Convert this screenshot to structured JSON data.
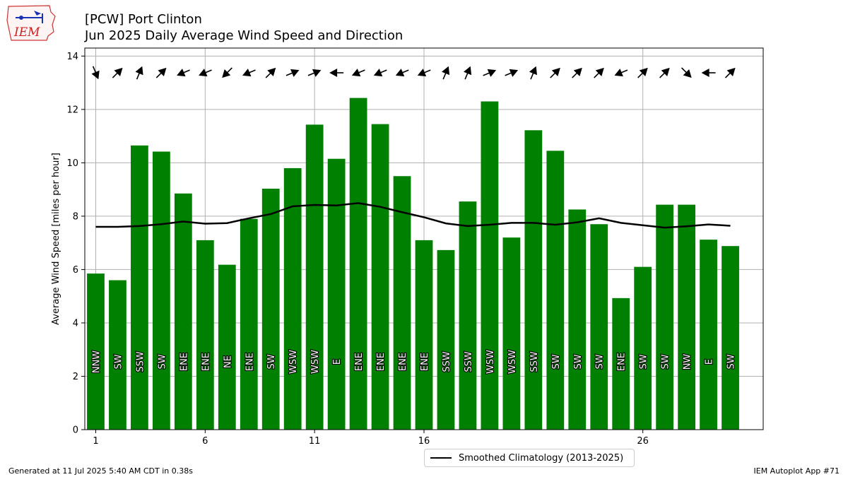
{
  "header": {
    "title_line1": "[PCW] Port Clinton",
    "title_line2": "Jun 2025 Daily Average Wind Speed and Direction"
  },
  "logo": {
    "text": "IEM",
    "icon": "iowa-state-weather-logo"
  },
  "footer": {
    "left": "Generated at 11 Jul 2025 5:40 AM CDT in 0.38s",
    "right": "IEM Autoplot App #71"
  },
  "legend": {
    "label": "Smoothed Climatology (2013-2025)"
  },
  "colors": {
    "bar": "#008000",
    "line": "#000000",
    "grid": "#b0b0b0",
    "arrow": "#000000"
  },
  "chart_data": {
    "type": "bar",
    "ylabel": "Average Wind Speed [miles per hour]",
    "xlabel": "",
    "ylim": [
      0,
      14.3
    ],
    "xlim": [
      0.5,
      31.5
    ],
    "grid": true,
    "legend_position": "bottom-center",
    "x_ticks": [
      1,
      6,
      11,
      16,
      26
    ],
    "y_ticks": [
      0,
      2,
      4,
      6,
      8,
      10,
      12,
      14
    ],
    "days": [
      1,
      2,
      3,
      4,
      5,
      6,
      7,
      8,
      9,
      10,
      11,
      12,
      13,
      14,
      15,
      16,
      17,
      18,
      19,
      20,
      21,
      22,
      23,
      24,
      25,
      26,
      27,
      28,
      29,
      30
    ],
    "series": [
      {
        "name": "Average Wind Speed",
        "values": [
          5.85,
          5.6,
          10.65,
          10.42,
          8.85,
          7.1,
          6.18,
          7.9,
          9.03,
          9.8,
          11.43,
          10.15,
          12.43,
          11.45,
          9.5,
          7.1,
          6.73,
          8.55,
          12.3,
          7.2,
          11.22,
          10.45,
          8.25,
          7.7,
          4.93,
          6.1,
          8.43,
          8.43,
          7.12,
          6.88
        ]
      },
      {
        "name": "Smoothed Climatology (2013-2025)",
        "values": [
          7.6,
          7.6,
          7.63,
          7.7,
          7.8,
          7.72,
          7.74,
          7.92,
          8.08,
          8.37,
          8.42,
          8.4,
          8.49,
          8.35,
          8.15,
          7.96,
          7.73,
          7.63,
          7.68,
          7.75,
          7.75,
          7.68,
          7.77,
          7.92,
          7.75,
          7.66,
          7.57,
          7.62,
          7.69,
          7.64
        ]
      }
    ],
    "directions": [
      "NNW",
      "SW",
      "SSW",
      "SW",
      "ENE",
      "ENE",
      "NE",
      "ENE",
      "SW",
      "WSW",
      "WSW",
      "E",
      "ENE",
      "ENE",
      "ENE",
      "ENE",
      "SSW",
      "SSW",
      "WSW",
      "WSW",
      "SSW",
      "SW",
      "SW",
      "SW",
      "ENE",
      "SW",
      "SW",
      "NW",
      "E",
      "SW"
    ]
  }
}
